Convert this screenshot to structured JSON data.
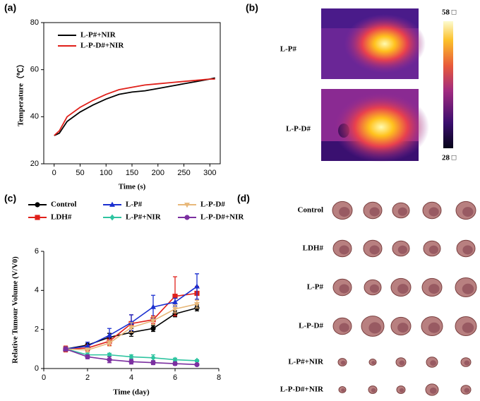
{
  "panels": [
    "(a)",
    "(b)",
    "(c)",
    "(d)"
  ],
  "chart_data": [
    {
      "type": "line",
      "xlabel": "Time (s)",
      "ylabel": "Temperature（℃）",
      "x": [
        0,
        10,
        25,
        50,
        75,
        100,
        125,
        150,
        175,
        200,
        225,
        250,
        275,
        300,
        310
      ],
      "xlim": [
        -20,
        320
      ],
      "xticks": [
        0,
        50,
        100,
        150,
        200,
        250,
        300
      ],
      "ylim": [
        20,
        80
      ],
      "yticks": [
        20,
        40,
        60,
        80
      ],
      "legend": "upper left",
      "series": [
        {
          "name": "L-P#+NIR",
          "color": "#000000",
          "values": [
            32,
            33,
            38,
            42,
            45,
            47.5,
            49.5,
            50.5,
            51,
            52,
            53,
            54,
            55,
            56,
            56.5
          ]
        },
        {
          "name": "L-P-D#+NIR",
          "color": "#e0201a",
          "values": [
            32,
            34,
            40,
            44,
            47,
            49.5,
            51.5,
            52.5,
            53.5,
            54,
            54.5,
            55,
            55.5,
            56,
            56
          ]
        }
      ]
    },
    {
      "type": "errorline",
      "xlabel": "Time (day)",
      "ylabel": "Relative Tumour Volume (V/V0)",
      "x": [
        1,
        2,
        3,
        4,
        5,
        6,
        7
      ],
      "xlim": [
        0,
        8
      ],
      "xticks": [
        0,
        2,
        4,
        6,
        8
      ],
      "ylim": [
        0,
        6
      ],
      "yticks": [
        0,
        2,
        4,
        6
      ],
      "legend": "top",
      "series": [
        {
          "name": "Control",
          "color": "#000000",
          "marker": "circle",
          "values": [
            1,
            1.2,
            1.6,
            1.85,
            2.05,
            2.8,
            3.1
          ],
          "errors": [
            0.1,
            0.15,
            0.2,
            0.2,
            0.15,
            0.15,
            0.15
          ]
        },
        {
          "name": "LDH#",
          "color": "#e0201a",
          "marker": "square",
          "values": [
            1,
            1.05,
            1.4,
            2.3,
            2.5,
            3.7,
            3.85
          ],
          "errors": [
            0.15,
            0.15,
            0.2,
            0.45,
            0.2,
            1.0,
            0.35
          ]
        },
        {
          "name": "L-P#",
          "color": "#1a2fd0",
          "marker": "triangle-up",
          "values": [
            1,
            1.15,
            1.7,
            2.35,
            3.15,
            3.4,
            4.2
          ],
          "errors": [
            0.1,
            0.2,
            0.35,
            0.4,
            0.6,
            0.2,
            0.65
          ]
        },
        {
          "name": "L-P#+NIR",
          "color": "#2ec4a0",
          "marker": "diamond",
          "values": [
            1,
            0.7,
            0.7,
            0.6,
            0.55,
            0.45,
            0.4
          ],
          "errors": [
            0.1,
            0.1,
            0.08,
            0.1,
            0.15,
            0.08,
            0.05
          ]
        },
        {
          "name": "L-P-D#",
          "color": "#e8b87a",
          "marker": "triangle-down",
          "values": [
            1,
            0.95,
            1.3,
            2.1,
            2.45,
            3.05,
            3.3
          ],
          "errors": [
            0.1,
            0.1,
            0.15,
            0.25,
            0.2,
            0.2,
            0.2
          ]
        },
        {
          "name": "L-P-D#+NIR",
          "color": "#7b2fa0",
          "marker": "circle",
          "values": [
            1,
            0.6,
            0.45,
            0.35,
            0.3,
            0.25,
            0.2
          ],
          "errors": [
            0.1,
            0.1,
            0.15,
            0.12,
            0.1,
            0.08,
            0.05
          ]
        }
      ]
    }
  ],
  "thermal": {
    "labels": [
      "L-P#",
      "L-P-D#"
    ],
    "scale_max": "58 □",
    "scale_min": "28 □"
  },
  "tumors": {
    "rows": [
      "Control",
      "LDH#",
      "L-P#",
      "L-P-D#",
      "L-P#+NIR",
      "L-P-D#+NIR"
    ]
  }
}
